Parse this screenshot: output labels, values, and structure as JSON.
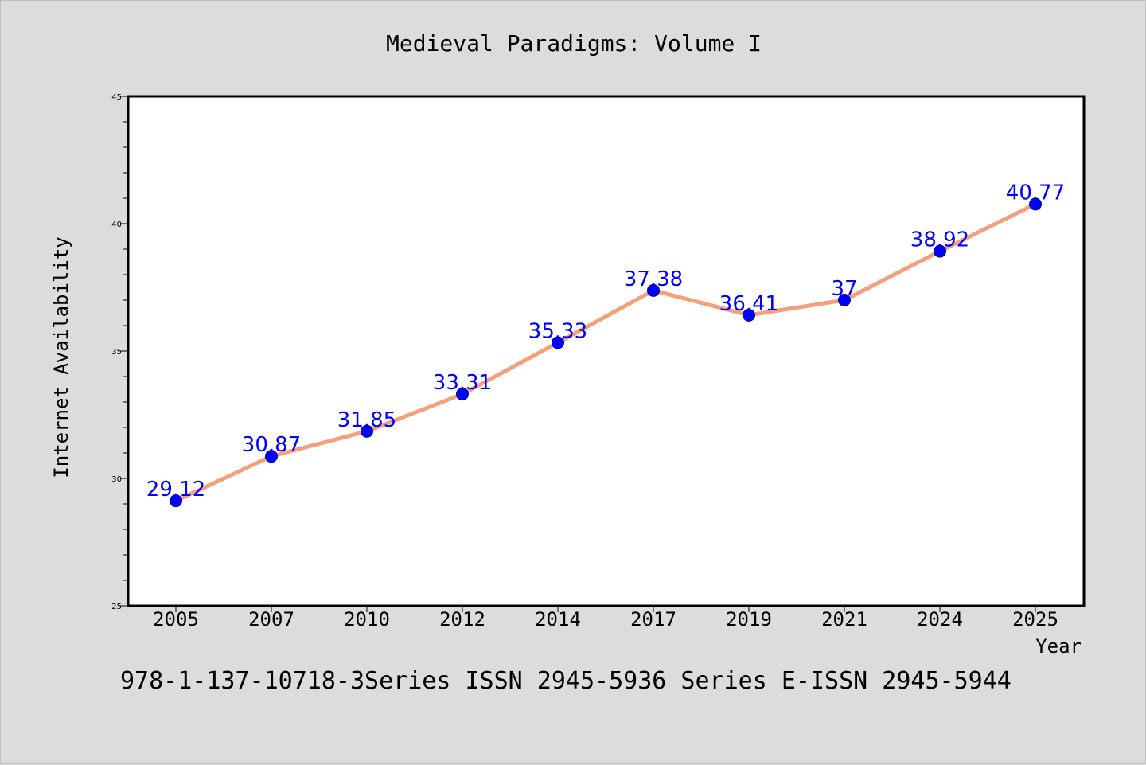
{
  "chart_data": {
    "type": "line",
    "title": "Medieval Paradigms: Volume I",
    "xlabel": "Year",
    "ylabel": "Internet Availability",
    "categories": [
      "2005",
      "2007",
      "2010",
      "2012",
      "2014",
      "2017",
      "2019",
      "2021",
      "2024",
      "2025"
    ],
    "values": [
      29.12,
      30.87,
      31.85,
      33.31,
      35.33,
      37.38,
      36.41,
      37,
      38.92,
      40.77
    ],
    "data_labels": [
      "29.12",
      "30.87",
      "31.85",
      "33.31",
      "35.33",
      "37.38",
      "36.41",
      "37",
      "38.92",
      "40.77"
    ],
    "ylim": [
      25,
      45
    ],
    "yticks": [
      25,
      30,
      35,
      40,
      45
    ],
    "ytick_labels": [
      "25",
      "30",
      "35",
      "40",
      "45"
    ],
    "grid": false,
    "legend": "none",
    "colors": {
      "line": "#f4a07a",
      "marker": "#0000ff",
      "marker_edge": "#00008b",
      "data_label": "#0000ff"
    }
  },
  "footer": "978-1-137-10718-3Series ISSN 2945-5936 Series E-ISSN 2945-5944"
}
